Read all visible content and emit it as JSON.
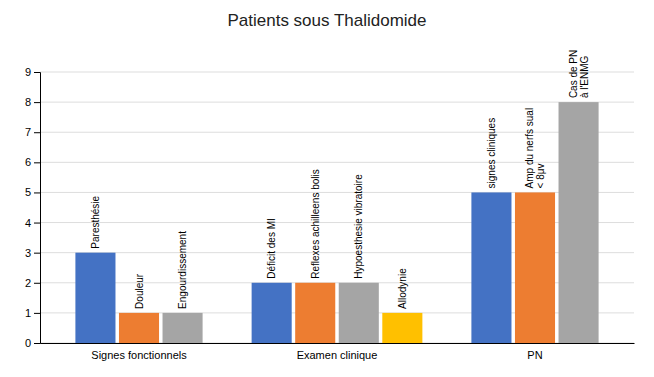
{
  "chart_data": {
    "type": "bar",
    "title": "Patients sous Thalidomide",
    "categories": [
      "Signes fonctionnels",
      "Examen clinique",
      "PN"
    ],
    "series": [
      {
        "color": "#4472C4",
        "values": [
          3,
          2,
          5
        ],
        "labels": [
          "Paresthésie",
          "Déficit des MI",
          "signes cliniques"
        ]
      },
      {
        "color": "#ED7D31",
        "values": [
          1,
          2,
          5
        ],
        "labels": [
          "Douleur",
          "Reflexes achilleens bolis",
          "Amp du nerfs sual\n< 8μv"
        ]
      },
      {
        "color": "#A5A5A5",
        "values": [
          1,
          2,
          8
        ],
        "labels": [
          "Engourdissement",
          "Hypoesthesie vibratoire",
          "Cas de PN\nà l'ENMG"
        ]
      },
      {
        "color": "#FFC000",
        "values": [
          null,
          1,
          null
        ],
        "labels": [
          null,
          "Allodynie",
          null
        ]
      }
    ],
    "ylim": [
      0,
      9
    ],
    "yticks": [
      0,
      1,
      2,
      3,
      4,
      5,
      6,
      7,
      8,
      9
    ],
    "grid": true
  }
}
